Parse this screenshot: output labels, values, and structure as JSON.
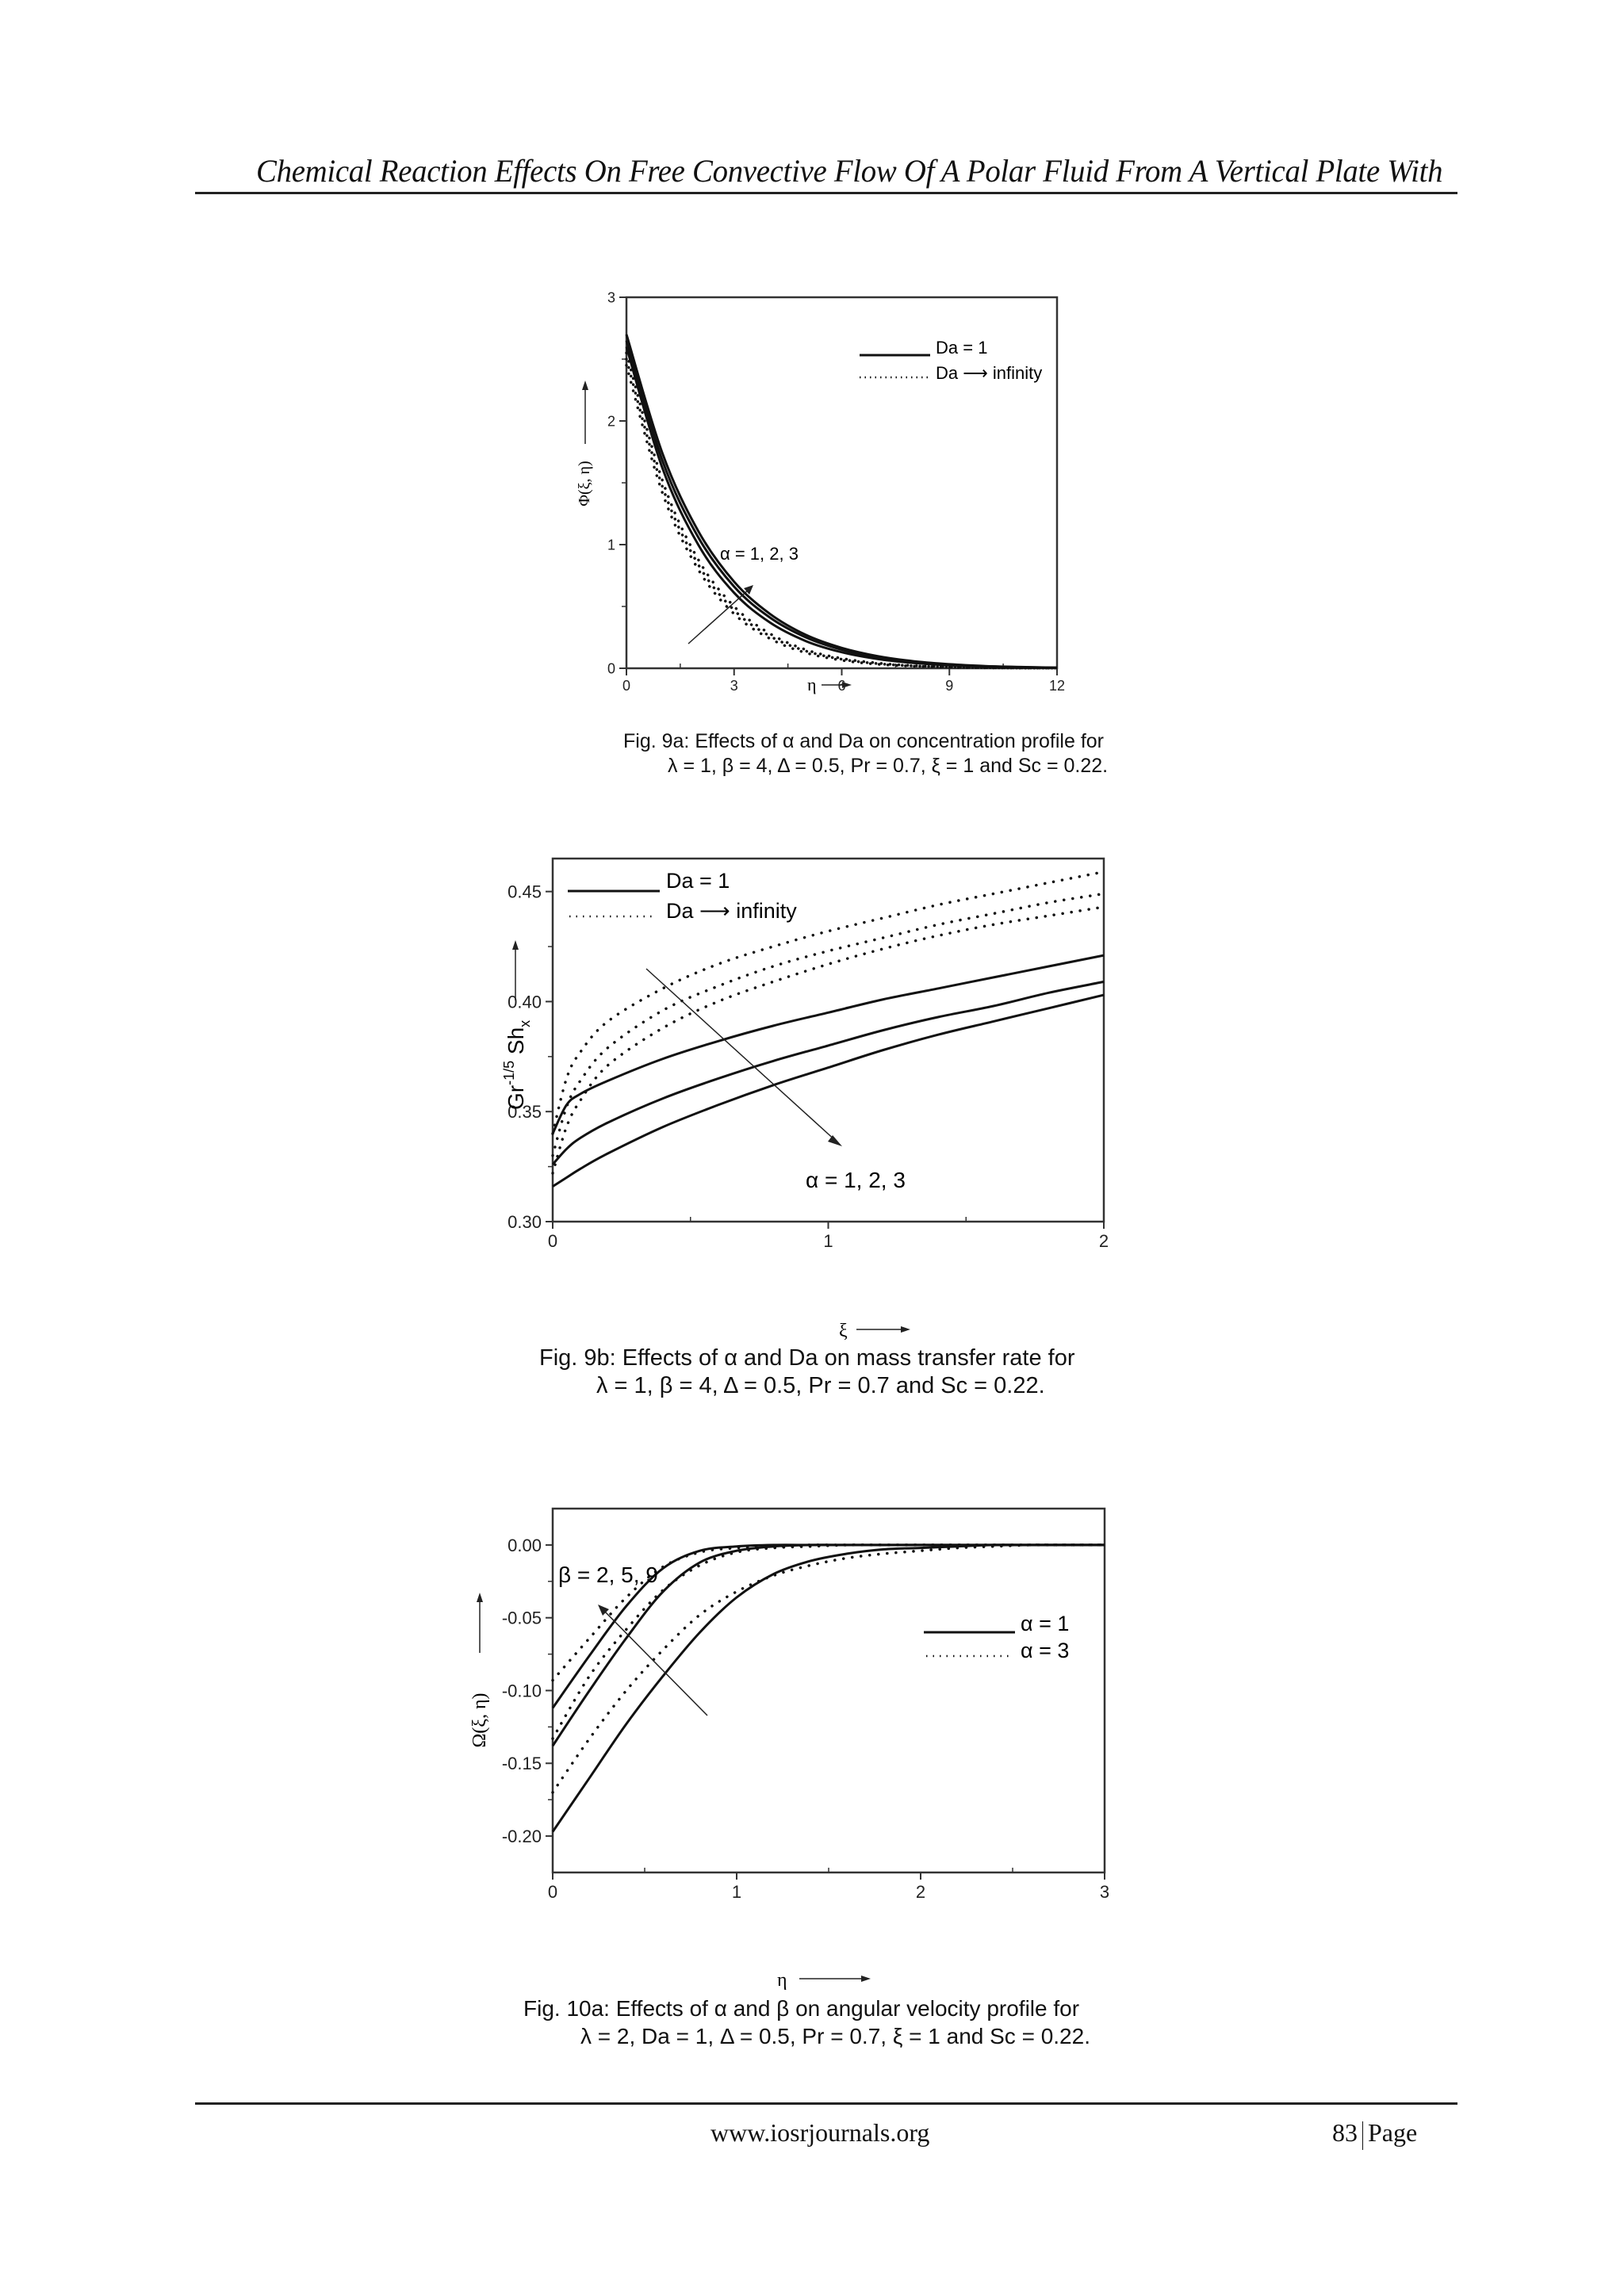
{
  "page": {
    "running_header": "Chemical Reaction Effects On Free Convective Flow Of A Polar Fluid From A Vertical Plate With",
    "footer_url": "www.iosrjournals.org",
    "page_number": "83",
    "page_label": "Page"
  },
  "figures": [
    {
      "id": "fig9a",
      "caption_line1": "Fig. 9a: Effects of α and Da on concentration profile for",
      "caption_line2": "λ = 1, β = 4, Δ = 0.5, Pr = 0.7, ξ = 1 and Sc = 0.22.",
      "legend": [
        {
          "style": "solid",
          "label": "Da = 1"
        },
        {
          "style": "dotted",
          "label": "Da ⟶ infinity"
        }
      ],
      "annotation": "α = 1, 2, 3",
      "ylabel": "Φ(ξ, η)",
      "xlabel": "η"
    },
    {
      "id": "fig9b",
      "caption_line1": "Fig. 9b: Effects of α and Da on mass transfer rate for",
      "caption_line2": "λ = 1, β = 4, Δ = 0.5, Pr = 0.7 and Sc = 0.22.",
      "legend": [
        {
          "style": "solid",
          "label": "Da = 1"
        },
        {
          "style": "dotted",
          "label": "Da ⟶ infinity"
        }
      ],
      "annotation": "α = 1, 2, 3",
      "ylabel": "Gr^-1/5 Sh_x",
      "xlabel": "ξ"
    },
    {
      "id": "fig10a",
      "caption_line1": "Fig. 10a: Effects of α and β on angular velocity profile for",
      "caption_line2": "λ = 2, Da = 1, Δ = 0.5, Pr = 0.7, ξ = 1 and Sc = 0.22.",
      "legend": [
        {
          "style": "solid",
          "label": "α = 1"
        },
        {
          "style": "dotted",
          "label": "α = 3"
        }
      ],
      "annotation": "β = 2, 5, 9",
      "ylabel": "Ω(ξ, η)",
      "xlabel": "η"
    }
  ],
  "chart_data": [
    {
      "type": "line",
      "title": "Fig. 9a: Effects of α and Da on concentration profile",
      "xlabel": "η",
      "ylabel": "Φ(ξ, η)",
      "xlim": [
        0,
        12
      ],
      "ylim": [
        0,
        3
      ],
      "xticks": [
        0,
        3,
        6,
        9,
        12
      ],
      "yticks": [
        0,
        1,
        2,
        3
      ],
      "grid": false,
      "legend_position": "upper right",
      "annotations": [
        "α = 1, 2, 3 (arrow pointing up-right)"
      ],
      "x": [
        0,
        1,
        2,
        3,
        4,
        5,
        6,
        7,
        8,
        9,
        10,
        11,
        12
      ],
      "series": [
        {
          "name": "Da = 1, α = 1",
          "style": "solid",
          "values": [
            2.6,
            1.62,
            1.0,
            0.61,
            0.37,
            0.22,
            0.13,
            0.075,
            0.043,
            0.024,
            0.013,
            0.007,
            0.004
          ]
        },
        {
          "name": "Da = 1, α = 2",
          "style": "solid",
          "values": [
            2.65,
            1.68,
            1.06,
            0.66,
            0.41,
            0.25,
            0.15,
            0.088,
            0.051,
            0.029,
            0.016,
            0.009,
            0.005
          ]
        },
        {
          "name": "Da = 1, α = 3",
          "style": "solid",
          "values": [
            2.7,
            1.74,
            1.11,
            0.7,
            0.44,
            0.27,
            0.165,
            0.098,
            0.057,
            0.033,
            0.018,
            0.01,
            0.005
          ]
        },
        {
          "name": "Da → ∞, α = 1",
          "style": "dotted",
          "values": [
            2.45,
            1.42,
            0.8,
            0.44,
            0.24,
            0.125,
            0.065,
            0.033,
            0.017,
            0.008,
            0.004,
            0.002,
            0.001
          ]
        },
        {
          "name": "Da → ∞, α = 2",
          "style": "dotted",
          "values": [
            2.5,
            1.47,
            0.84,
            0.47,
            0.26,
            0.14,
            0.073,
            0.038,
            0.019,
            0.01,
            0.005,
            0.002,
            0.001
          ]
        },
        {
          "name": "Da → ∞, α = 3",
          "style": "dotted",
          "values": [
            2.55,
            1.52,
            0.88,
            0.5,
            0.28,
            0.15,
            0.08,
            0.042,
            0.021,
            0.011,
            0.005,
            0.003,
            0.001
          ]
        }
      ]
    },
    {
      "type": "line",
      "title": "Fig. 9b: Effects of α and Da on mass transfer rate",
      "xlabel": "ξ",
      "ylabel": "Gr^-1/5 Sh_x",
      "xlim": [
        0,
        2
      ],
      "ylim": [
        0.3,
        0.465
      ],
      "xticks": [
        0,
        1,
        2
      ],
      "yticks": [
        0.3,
        0.35,
        0.4,
        0.45
      ],
      "grid": false,
      "legend_position": "upper left",
      "annotations": [
        "α = 1, 2, 3 (arrow pointing down-right)"
      ],
      "x": [
        0,
        0.05,
        0.1,
        0.2,
        0.4,
        0.6,
        0.8,
        1.0,
        1.2,
        1.4,
        1.6,
        1.8,
        2.0
      ],
      "series": [
        {
          "name": "Da = 1, α = 1",
          "style": "solid",
          "values": [
            0.34,
            0.353,
            0.358,
            0.364,
            0.374,
            0.382,
            0.389,
            0.395,
            0.401,
            0.406,
            0.411,
            0.416,
            0.421
          ]
        },
        {
          "name": "Da = 1, α = 2",
          "style": "solid",
          "values": [
            0.326,
            0.333,
            0.338,
            0.345,
            0.356,
            0.365,
            0.373,
            0.38,
            0.387,
            0.393,
            0.398,
            0.404,
            0.409
          ]
        },
        {
          "name": "Da = 1, α = 3",
          "style": "solid",
          "values": [
            0.316,
            0.32,
            0.324,
            0.331,
            0.343,
            0.353,
            0.362,
            0.37,
            0.378,
            0.385,
            0.391,
            0.397,
            0.403
          ]
        },
        {
          "name": "Da → ∞, α = 1",
          "style": "dotted",
          "values": [
            0.34,
            0.365,
            0.377,
            0.391,
            0.406,
            0.417,
            0.425,
            0.432,
            0.438,
            0.444,
            0.449,
            0.454,
            0.459
          ]
        },
        {
          "name": "Da → ∞, α = 2",
          "style": "dotted",
          "values": [
            0.33,
            0.352,
            0.364,
            0.379,
            0.396,
            0.407,
            0.416,
            0.423,
            0.429,
            0.435,
            0.44,
            0.445,
            0.449
          ]
        },
        {
          "name": "Da → ∞, α = 3",
          "style": "dotted",
          "values": [
            0.322,
            0.343,
            0.355,
            0.371,
            0.388,
            0.4,
            0.409,
            0.417,
            0.424,
            0.43,
            0.435,
            0.439,
            0.443
          ]
        }
      ]
    },
    {
      "type": "line",
      "title": "Fig. 10a: Effects of α and β on angular velocity profile",
      "xlabel": "η",
      "ylabel": "Ω(ξ, η)",
      "xlim": [
        0,
        3
      ],
      "ylim": [
        -0.225,
        0.025
      ],
      "xticks": [
        0,
        1,
        2,
        3
      ],
      "yticks": [
        0.0,
        -0.05,
        -0.1,
        -0.15,
        -0.2
      ],
      "grid": false,
      "legend_position": "right",
      "annotations": [
        "β = 2, 5, 9 (arrow pointing up-left)"
      ],
      "x": [
        0,
        0.2,
        0.4,
        0.6,
        0.8,
        1.0,
        1.2,
        1.4,
        1.6,
        1.8,
        2.0,
        2.2,
        2.4,
        2.6,
        2.8,
        3.0
      ],
      "series": [
        {
          "name": "α = 1, β = 9",
          "style": "solid",
          "values": [
            -0.112,
            -0.076,
            -0.042,
            -0.016,
            -0.004,
            -0.001,
            0.0,
            0.0,
            0.0,
            0.0,
            0.0,
            0.0,
            0.0,
            0.0,
            0.0,
            0.0
          ]
        },
        {
          "name": "α = 1, β = 5",
          "style": "solid",
          "values": [
            -0.138,
            -0.1,
            -0.064,
            -0.032,
            -0.012,
            -0.004,
            -0.001,
            0.0,
            0.0,
            0.0,
            0.0,
            0.0,
            0.0,
            0.0,
            0.0,
            0.0
          ]
        },
        {
          "name": "α = 1, β = 2",
          "style": "solid",
          "values": [
            -0.197,
            -0.16,
            -0.123,
            -0.09,
            -0.06,
            -0.036,
            -0.02,
            -0.011,
            -0.006,
            -0.003,
            -0.002,
            -0.001,
            0.0,
            0.0,
            0.0,
            0.0
          ]
        },
        {
          "name": "α = 3, β = 9",
          "style": "dotted",
          "values": [
            -0.093,
            -0.064,
            -0.036,
            -0.015,
            -0.005,
            -0.002,
            -0.001,
            0.0,
            0.0,
            0.0,
            0.0,
            0.0,
            0.0,
            0.0,
            0.0,
            0.0
          ]
        },
        {
          "name": "α = 3, β = 5",
          "style": "dotted",
          "values": [
            -0.133,
            -0.09,
            -0.058,
            -0.031,
            -0.014,
            -0.005,
            -0.002,
            -0.001,
            0.0,
            0.0,
            0.0,
            0.0,
            0.0,
            0.0,
            0.0,
            0.0
          ]
        },
        {
          "name": "α = 3, β = 2",
          "style": "dotted",
          "values": [
            -0.17,
            -0.133,
            -0.1,
            -0.072,
            -0.048,
            -0.032,
            -0.021,
            -0.014,
            -0.009,
            -0.006,
            -0.004,
            -0.002,
            -0.001,
            0.0,
            0.0,
            0.0
          ]
        }
      ]
    }
  ]
}
